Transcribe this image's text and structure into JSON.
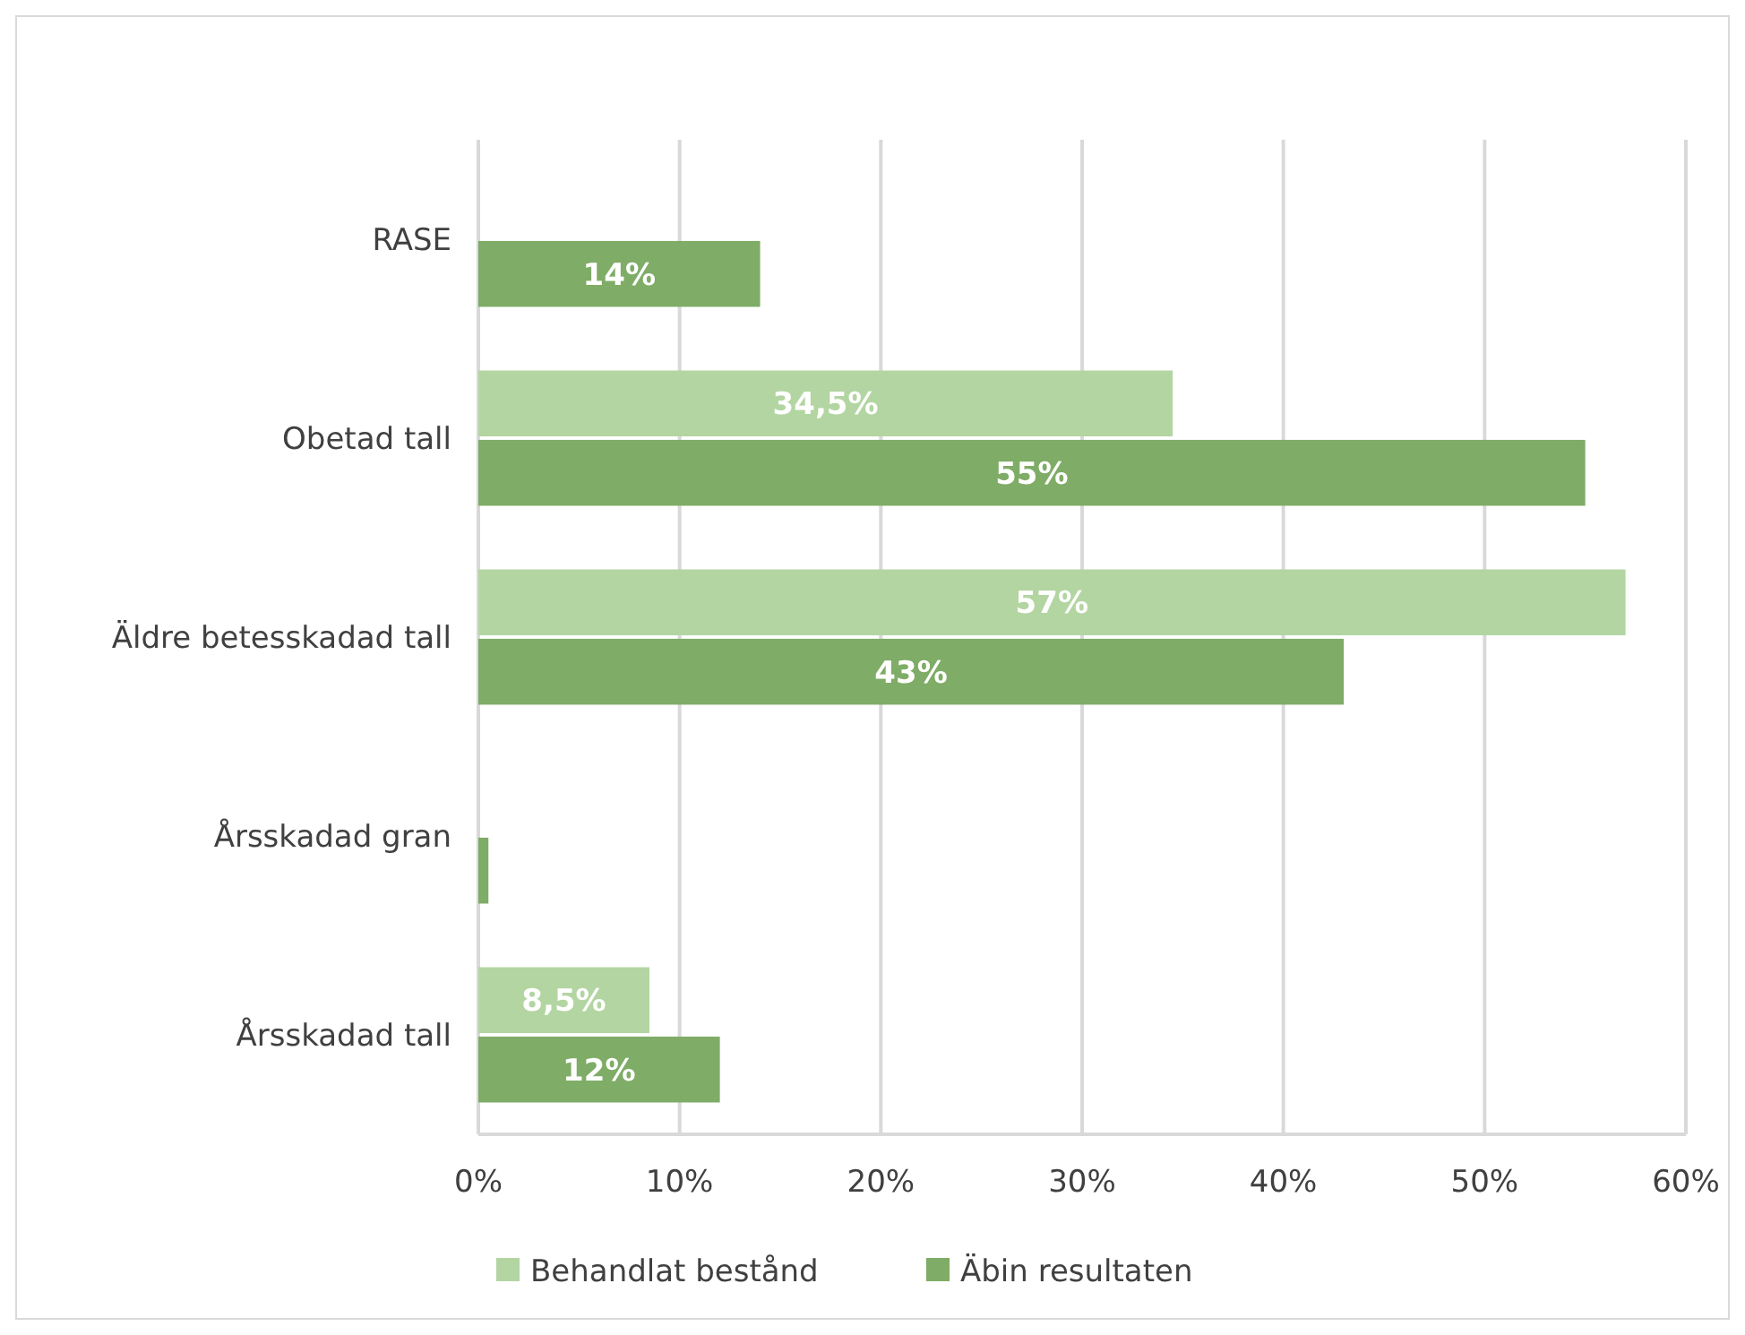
{
  "chart_data": {
    "type": "bar",
    "orientation": "horizontal",
    "categories": [
      "RASE",
      "Obetad tall",
      "Äldre betesskadad tall",
      "Årsskadad gran",
      "Årsskadad tall"
    ],
    "series": [
      {
        "name": "Behandlat bestånd",
        "color": "#b3d5a2",
        "values": [
          null,
          34.5,
          57,
          null,
          8.5
        ],
        "value_labels": [
          null,
          "34,5%",
          "57%",
          null,
          "8,5%"
        ]
      },
      {
        "name": "Äbin resultaten",
        "color": "#7fac66",
        "values": [
          14,
          55,
          43,
          0.5,
          12
        ],
        "value_labels": [
          "14%",
          "55%",
          "43%",
          null,
          "12%"
        ]
      }
    ],
    "xlim": [
      0,
      60
    ],
    "xticks": [
      {
        "value": 0,
        "label": "0%"
      },
      {
        "value": 10,
        "label": "10%"
      },
      {
        "value": 20,
        "label": "20%"
      },
      {
        "value": 30,
        "label": "30%"
      },
      {
        "value": 40,
        "label": "40%"
      },
      {
        "value": 50,
        "label": "50%"
      },
      {
        "value": 60,
        "label": "60%"
      }
    ],
    "grid": "x",
    "legend": "bottom"
  }
}
